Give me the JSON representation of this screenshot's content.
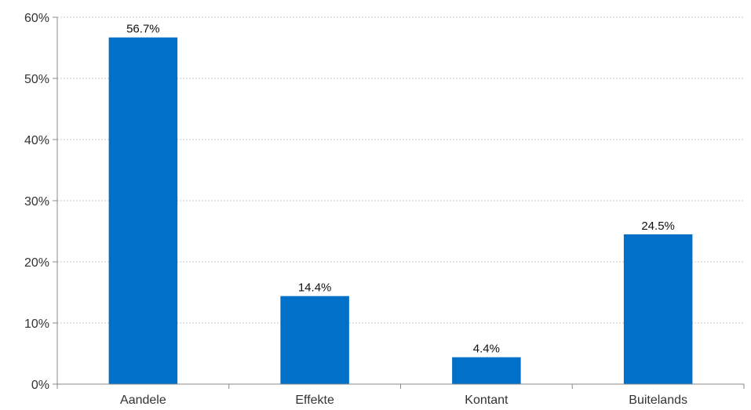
{
  "chart_data": {
    "type": "bar",
    "categories": [
      "Aandele",
      "Effekte",
      "Kontant",
      "Buitelands"
    ],
    "values": [
      56.7,
      14.4,
      4.4,
      24.5
    ],
    "data_labels": [
      "56.7%",
      "14.4%",
      "4.4%",
      "24.5%"
    ],
    "ylim": [
      0,
      60
    ],
    "yticks": [
      0,
      10,
      20,
      30,
      40,
      50,
      60
    ],
    "ytick_labels": [
      "0%",
      "10%",
      "20%",
      "30%",
      "40%",
      "50%",
      "60%"
    ],
    "title": "",
    "xlabel": "",
    "ylabel": "",
    "grid": true,
    "legend": "none",
    "bar_color": "#0070C8"
  }
}
